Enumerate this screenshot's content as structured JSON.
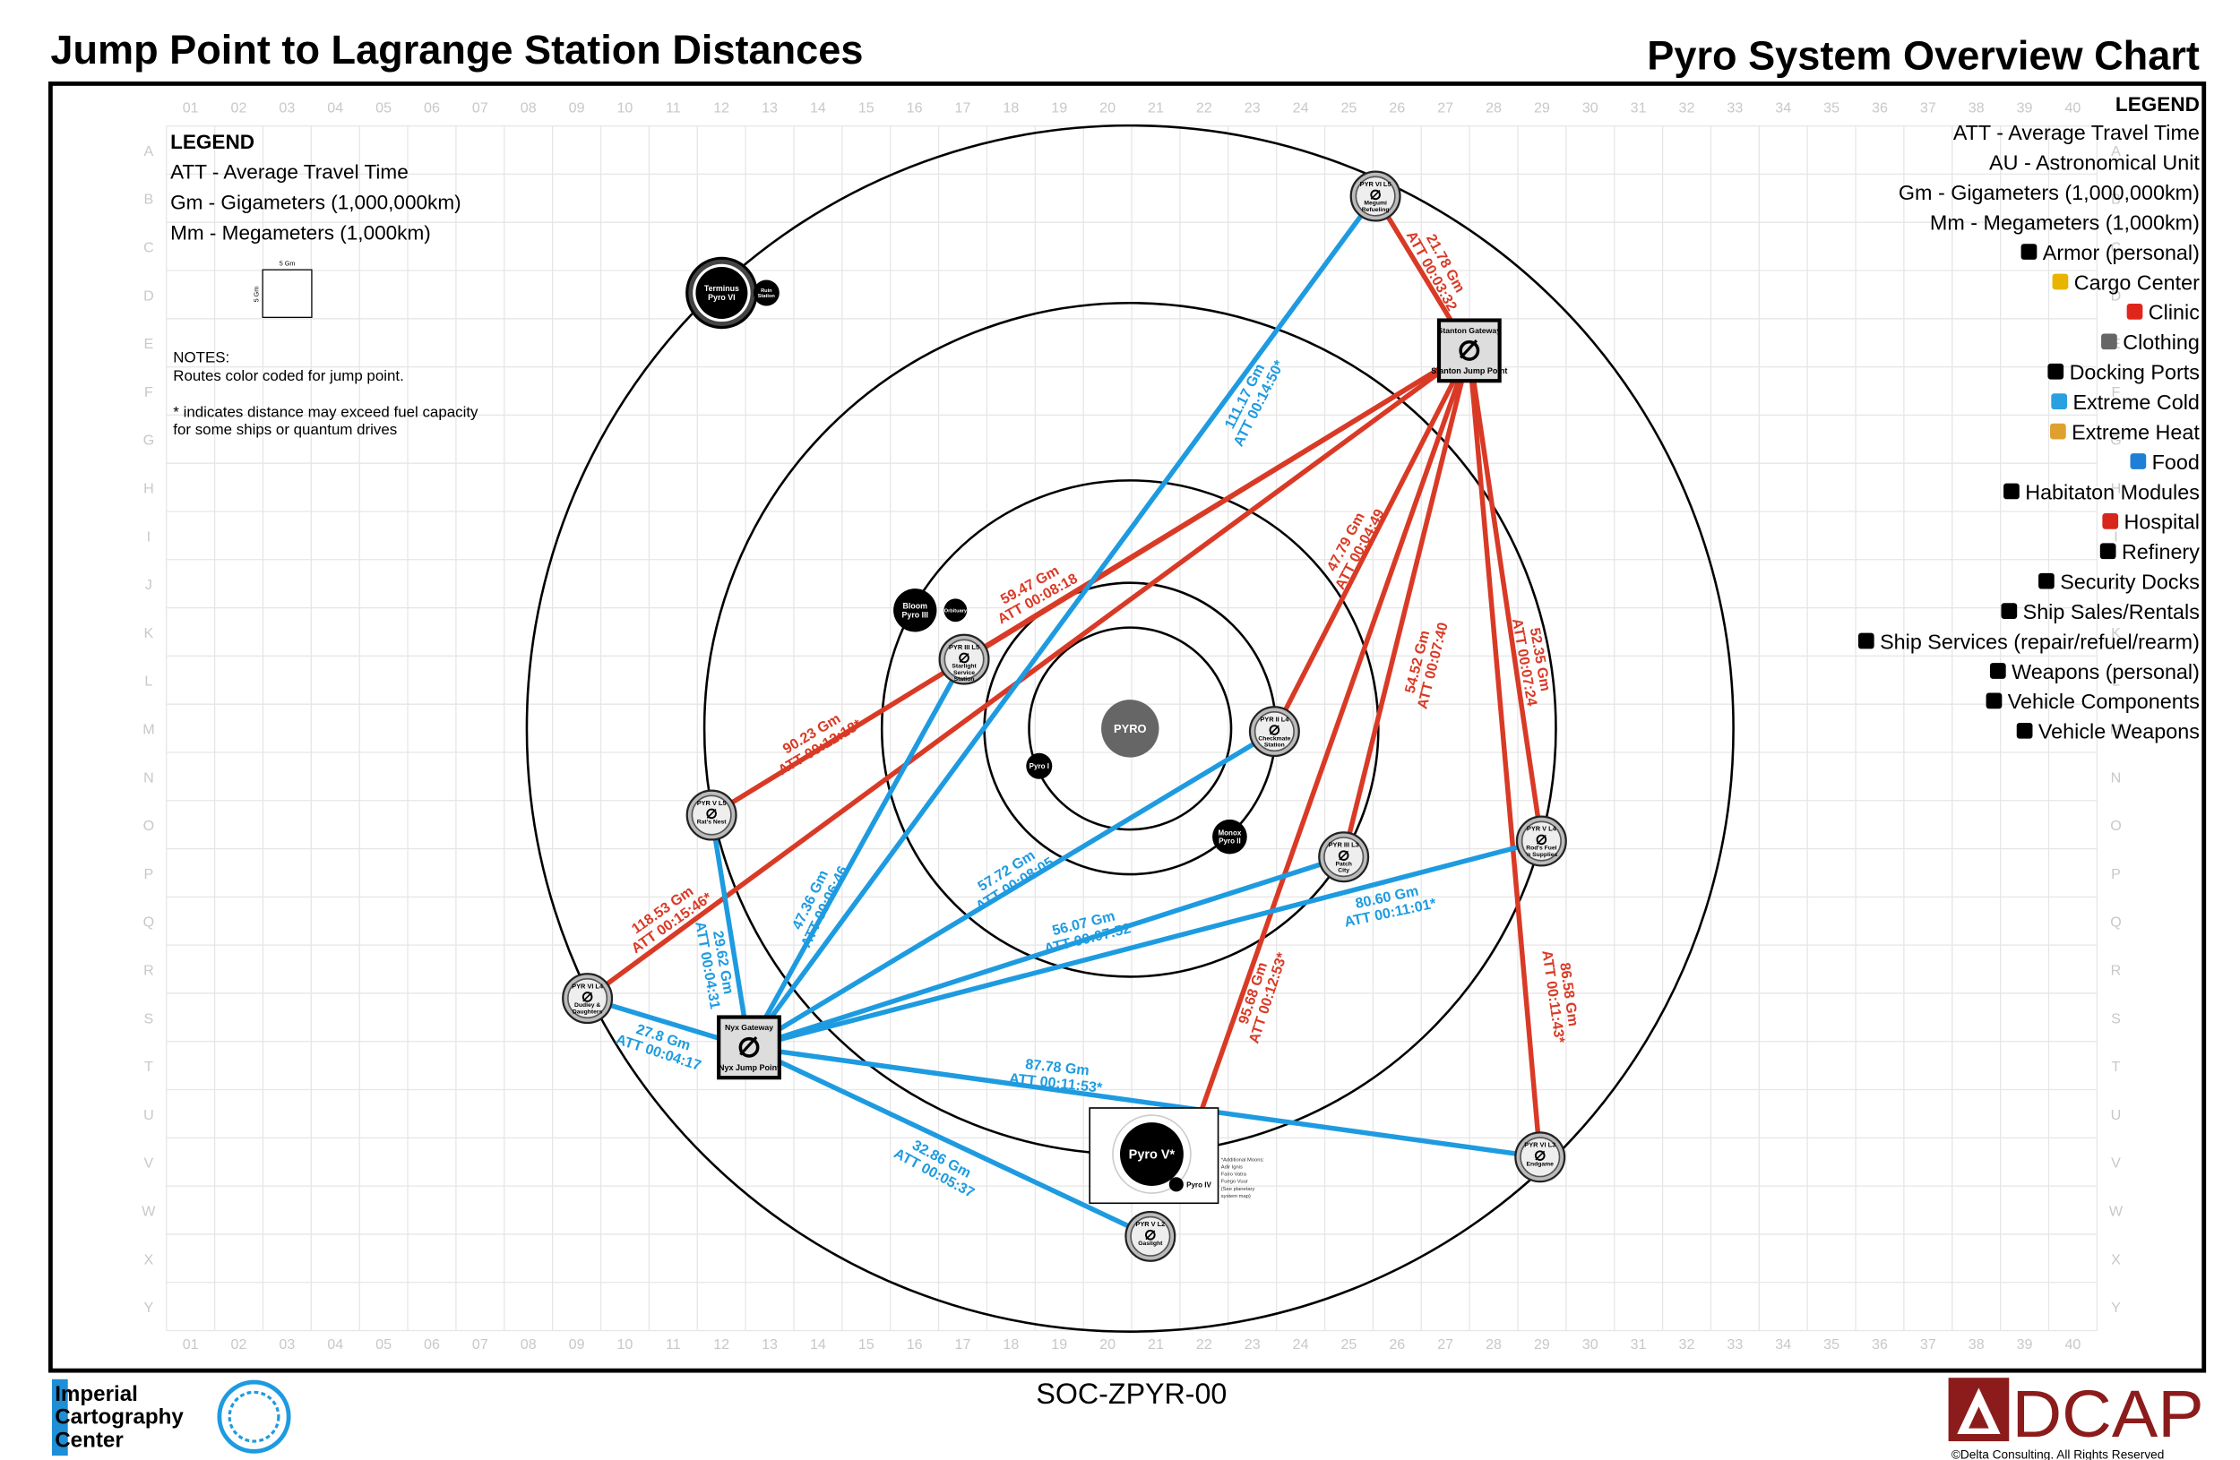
{
  "header": {
    "left_title": "Jump Point to Lagrange Station Distances",
    "right_title": "Pyro System Overview Chart"
  },
  "grid": {
    "columns": [
      "01",
      "02",
      "03",
      "04",
      "05",
      "06",
      "07",
      "08",
      "09",
      "10",
      "11",
      "12",
      "13",
      "14",
      "15",
      "16",
      "17",
      "18",
      "19",
      "20",
      "21",
      "22",
      "23",
      "24",
      "25",
      "26",
      "27",
      "28",
      "29",
      "30",
      "31",
      "32",
      "33",
      "34",
      "35",
      "36",
      "37",
      "38",
      "39",
      "40"
    ],
    "rows": [
      "A",
      "B",
      "C",
      "D",
      "E",
      "F",
      "G",
      "H",
      "I",
      "J",
      "K",
      "L",
      "M",
      "N",
      "O",
      "P",
      "Q",
      "R",
      "S",
      "T",
      "U",
      "V",
      "W",
      "X",
      "Y"
    ]
  },
  "legend_left": {
    "title": "LEGEND",
    "items": [
      "ATT - Average Travel Time",
      "Gm - Gigameters (1,000,000km)",
      "Mm - Megameters (1,000km)"
    ],
    "scale_label": "5 Gm"
  },
  "notes": {
    "title": "NOTES:",
    "lines": [
      "Routes color coded for jump point.",
      "* indicates distance may exceed fuel capacity",
      "for some ships or quantum drives"
    ]
  },
  "legend_right": {
    "title": "LEGEND",
    "items": [
      "ATT - Average Travel Time",
      "AU - Astronomical Unit",
      "Gm - Gigameters (1,000,000km)",
      "Mm - Megameters (1,000km)",
      "Armor (personal)",
      "Cargo Center",
      "Clinic",
      "Clothing",
      "Docking Ports",
      "Extreme Cold",
      "Extreme Heat",
      "Food",
      "Habitaton Modules",
      "Hospital",
      "Refinery",
      "Security Docks",
      "Ship Sales/Rentals",
      "Ship Services (repair/refuel/rearm)",
      "Weapons (personal)",
      "Vehicle Components",
      "Vehicle Weapons"
    ]
  },
  "bodies": [
    {
      "lines": [
        "PYRO"
      ]
    },
    {
      "lines": [
        "Pyro I"
      ]
    },
    {
      "lines": [
        "Monox",
        "Pyro II"
      ]
    },
    {
      "lines": [
        "Bloom",
        "Pyro III"
      ]
    },
    {
      "lines": [
        "Orbituary"
      ]
    },
    {
      "lines": [
        "Terminus",
        "Pyro VI"
      ]
    },
    {
      "lines": [
        "Ruin",
        "Station"
      ]
    },
    {
      "lines": [
        "Pyro V*"
      ]
    },
    {
      "lines": [
        "Pyro IV"
      ]
    }
  ],
  "pyro_v_note": [
    "*Additional Moons:",
    "Adir    Ignis",
    "Fairo   Vatra",
    "Fuego   Vuur",
    "(See planetary",
    "system map)"
  ],
  "stations": [
    {
      "code": "PYR VI L5",
      "name": [
        "Megumi",
        "Refueling"
      ]
    },
    {
      "code": "PYR III L5",
      "name": [
        "Starlight",
        "Service",
        "Station"
      ]
    },
    {
      "code": "PYR II L4",
      "name": [
        "Checkmate",
        "Station"
      ]
    },
    {
      "code": "PYR V L5",
      "name": [
        "Rat's Nest"
      ]
    },
    {
      "code": "PYR III L3",
      "name": [
        "Patch",
        "City"
      ]
    },
    {
      "code": "PYR V L4",
      "name": [
        "Rod's Fuel",
        "'n Supplies"
      ]
    },
    {
      "code": "PYR VI L4",
      "name": [
        "Dudley &",
        "Daughters"
      ]
    },
    {
      "code": "PYR VI L3",
      "name": [
        "Endgame"
      ]
    },
    {
      "code": "PYR V L2",
      "name": [
        "Gaslight"
      ]
    }
  ],
  "jump_points": [
    {
      "gateway": "Stanton Gateway",
      "label": "Stanton Jump Point",
      "color": "#d93a26",
      "routes": [
        {
          "distance": "21.78 Gm",
          "att": "ATT 00:03:32"
        },
        {
          "distance": "90.23 Gm",
          "att": "ATT 00:12:18*"
        },
        {
          "distance": "59.47 Gm",
          "att": "ATT 00:08:18"
        },
        {
          "distance": "118.53 Gm",
          "att": "ATT 00:15:46*"
        },
        {
          "distance": "47.79 Gm",
          "att": "ATT 00:04:49"
        },
        {
          "distance": "54.52 Gm",
          "att": "ATT 00:07:40"
        },
        {
          "distance": "95.68 Gm",
          "att": "ATT 00:12:53*"
        },
        {
          "distance": "52.35 Gm",
          "att": "ATT 00:07:24"
        },
        {
          "distance": "86.58 Gm",
          "att": "ATT 00:11:43*"
        }
      ]
    },
    {
      "gateway": "Nyx Gateway",
      "label": "Nyx Jump Point",
      "color": "#1e9be0",
      "routes": [
        {
          "distance": "111.17 Gm",
          "att": "ATT 00:14:50*"
        },
        {
          "distance": "47.36 Gm",
          "att": "ATT 00:06:46"
        },
        {
          "distance": "29.62 Gm",
          "att": "ATT 00:04:31"
        },
        {
          "distance": "27.8 Gm",
          "att": "ATT 00:04:17"
        },
        {
          "distance": "57.72 Gm",
          "att": "ATT 00:08:05"
        },
        {
          "distance": "56.07 Gm",
          "att": "ATT 00:07:52"
        },
        {
          "distance": "80.60 Gm",
          "att": "ATT 00:11:01*"
        },
        {
          "distance": "87.78 Gm",
          "att": "ATT 00:11:53*"
        },
        {
          "distance": "32.86 Gm",
          "att": "ATT 00:05:37"
        }
      ]
    }
  ],
  "footer": {
    "icc": [
      "Imperial",
      "Cartography",
      "Center"
    ],
    "code": "SOC-ZPYR-00",
    "dcap": "DCAP",
    "copyright": "©Delta Consulting.  All Rights Reserved"
  }
}
